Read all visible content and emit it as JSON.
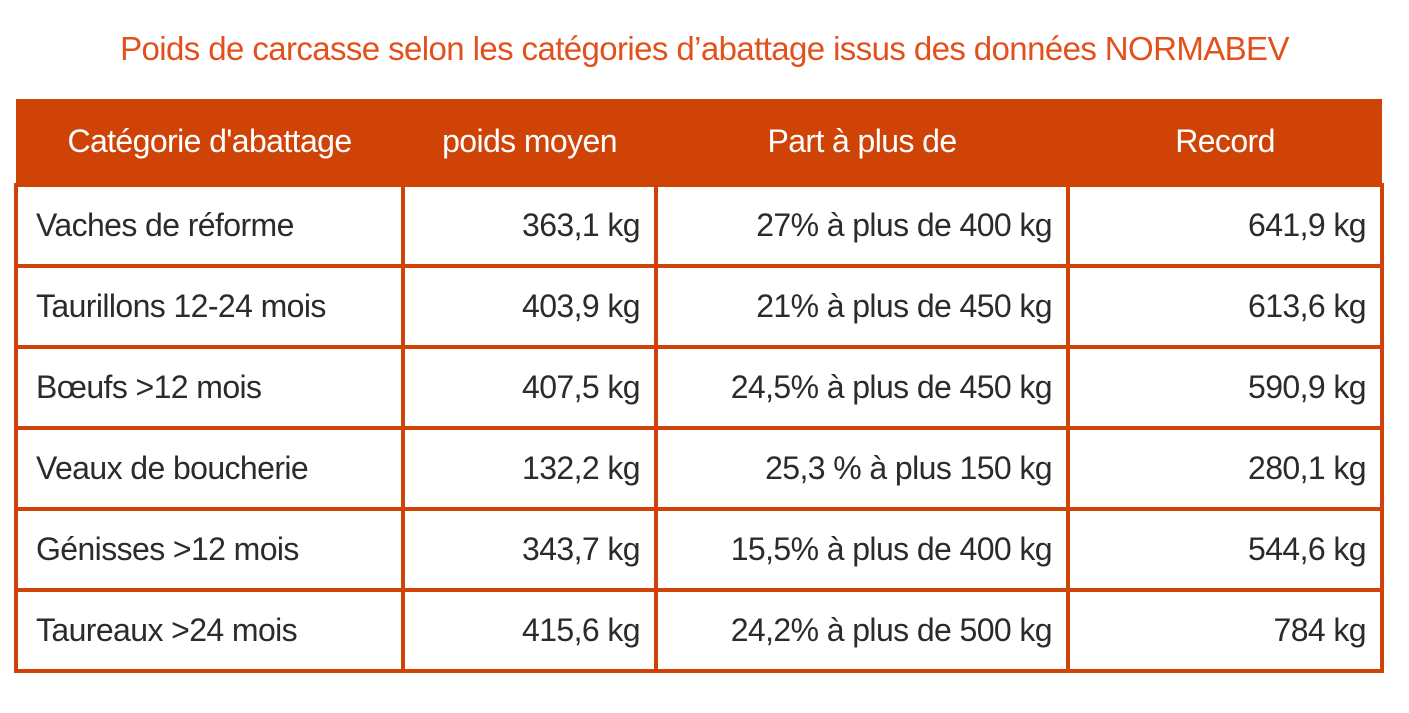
{
  "title": "Poids de carcasse selon les catégories d’abattage issus des données NORMABEV",
  "accent_color": "#cf4307",
  "title_color": "#e2501c",
  "table": {
    "headers": [
      "Catégorie d'abattage",
      "poids moyen",
      "Part à plus de",
      "Record"
    ],
    "rows": [
      [
        "Vaches de réforme",
        "363,1 kg",
        "27% à plus de 400 kg",
        "641,9 kg"
      ],
      [
        "Taurillons 12-24 mois",
        "403,9 kg",
        "21% à plus de 450 kg",
        "613,6 kg"
      ],
      [
        "Bœufs >12 mois",
        "407,5 kg",
        "24,5% à plus de 450 kg",
        "590,9 kg"
      ],
      [
        "Veaux de boucherie",
        "132,2 kg",
        "25,3 % à plus 150 kg",
        "280,1 kg"
      ],
      [
        "Génisses >12 mois",
        "343,7 kg",
        "15,5% à plus de 400 kg",
        "544,6 kg"
      ],
      [
        "Taureaux >24 mois",
        "415,6 kg",
        "24,2% à plus de 500 kg",
        "784 kg"
      ]
    ]
  }
}
